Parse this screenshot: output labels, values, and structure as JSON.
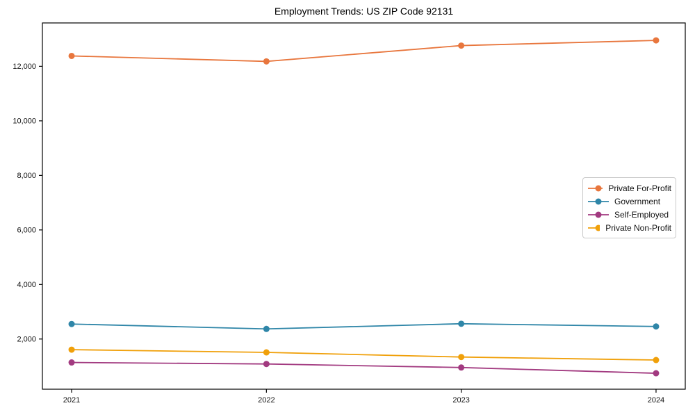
{
  "chart_data": {
    "type": "line",
    "title": "Employment Trends: US ZIP Code 92131",
    "x": [
      2021,
      2022,
      2023,
      2024
    ],
    "x_tick_labels": [
      "2021",
      "2022",
      "2023",
      "2024"
    ],
    "series": [
      {
        "name": "Private For-Profit",
        "color": "#e8763d",
        "values": [
          12380,
          12180,
          12760,
          12950
        ]
      },
      {
        "name": "Government",
        "color": "#2f86a8",
        "values": [
          2550,
          2370,
          2560,
          2460
        ]
      },
      {
        "name": "Self-Employed",
        "color": "#a23a80",
        "values": [
          1140,
          1085,
          955,
          745
        ]
      },
      {
        "name": "Private Non-Profit",
        "color": "#f0a00a",
        "values": [
          1610,
          1510,
          1340,
          1230
        ]
      }
    ],
    "yticks": [
      2000,
      4000,
      6000,
      8000,
      10000,
      12000
    ],
    "ytick_labels": [
      "2,000",
      "4,000",
      "6,000",
      "8,000",
      "10,000",
      "12,000"
    ],
    "ylim": [
      160,
      13590
    ],
    "xlim": [
      2020.85,
      2024.15
    ],
    "grid": false,
    "legend_position": "center right",
    "xlabel": "",
    "ylabel": ""
  }
}
